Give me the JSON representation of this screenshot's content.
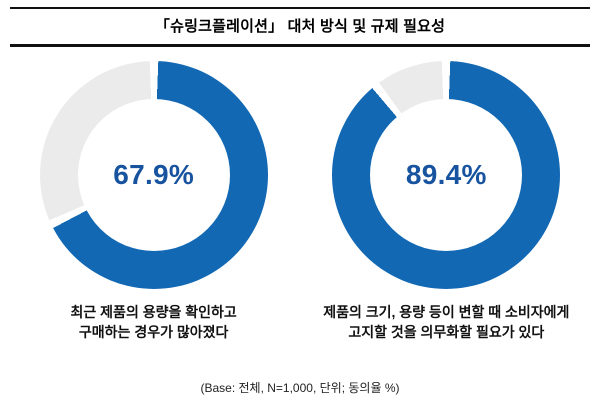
{
  "title": "「슈링크플레이션」 대처 방식 및 규제 필요성",
  "footnote": "(Base: 전체, N=1,000, 단위; 동의율 %)",
  "colors": {
    "primary": "#1268b3",
    "track": "#ebebeb",
    "value_text": "#17539f",
    "rule": "#111111"
  },
  "chart_data": [
    {
      "type": "pie",
      "subtype": "donut",
      "value_pct": 67.9,
      "slices": [
        67.9,
        32.1
      ],
      "center_label": "67.9%",
      "start_angle_deg": 0,
      "direction": "clockwise",
      "caption_lines": [
        "최근 제품의 용량을 확인하고",
        "구매하는 경우가 많아졌다"
      ]
    },
    {
      "type": "pie",
      "subtype": "donut",
      "value_pct": 89.4,
      "slices": [
        89.4,
        10.6
      ],
      "center_label": "89.4%",
      "start_angle_deg": 0,
      "direction": "clockwise",
      "caption_lines": [
        "제품의 크기, 용량 등이 변할 때 소비자에게",
        "고지할 것을 의무화할 필요가 있다"
      ]
    }
  ]
}
